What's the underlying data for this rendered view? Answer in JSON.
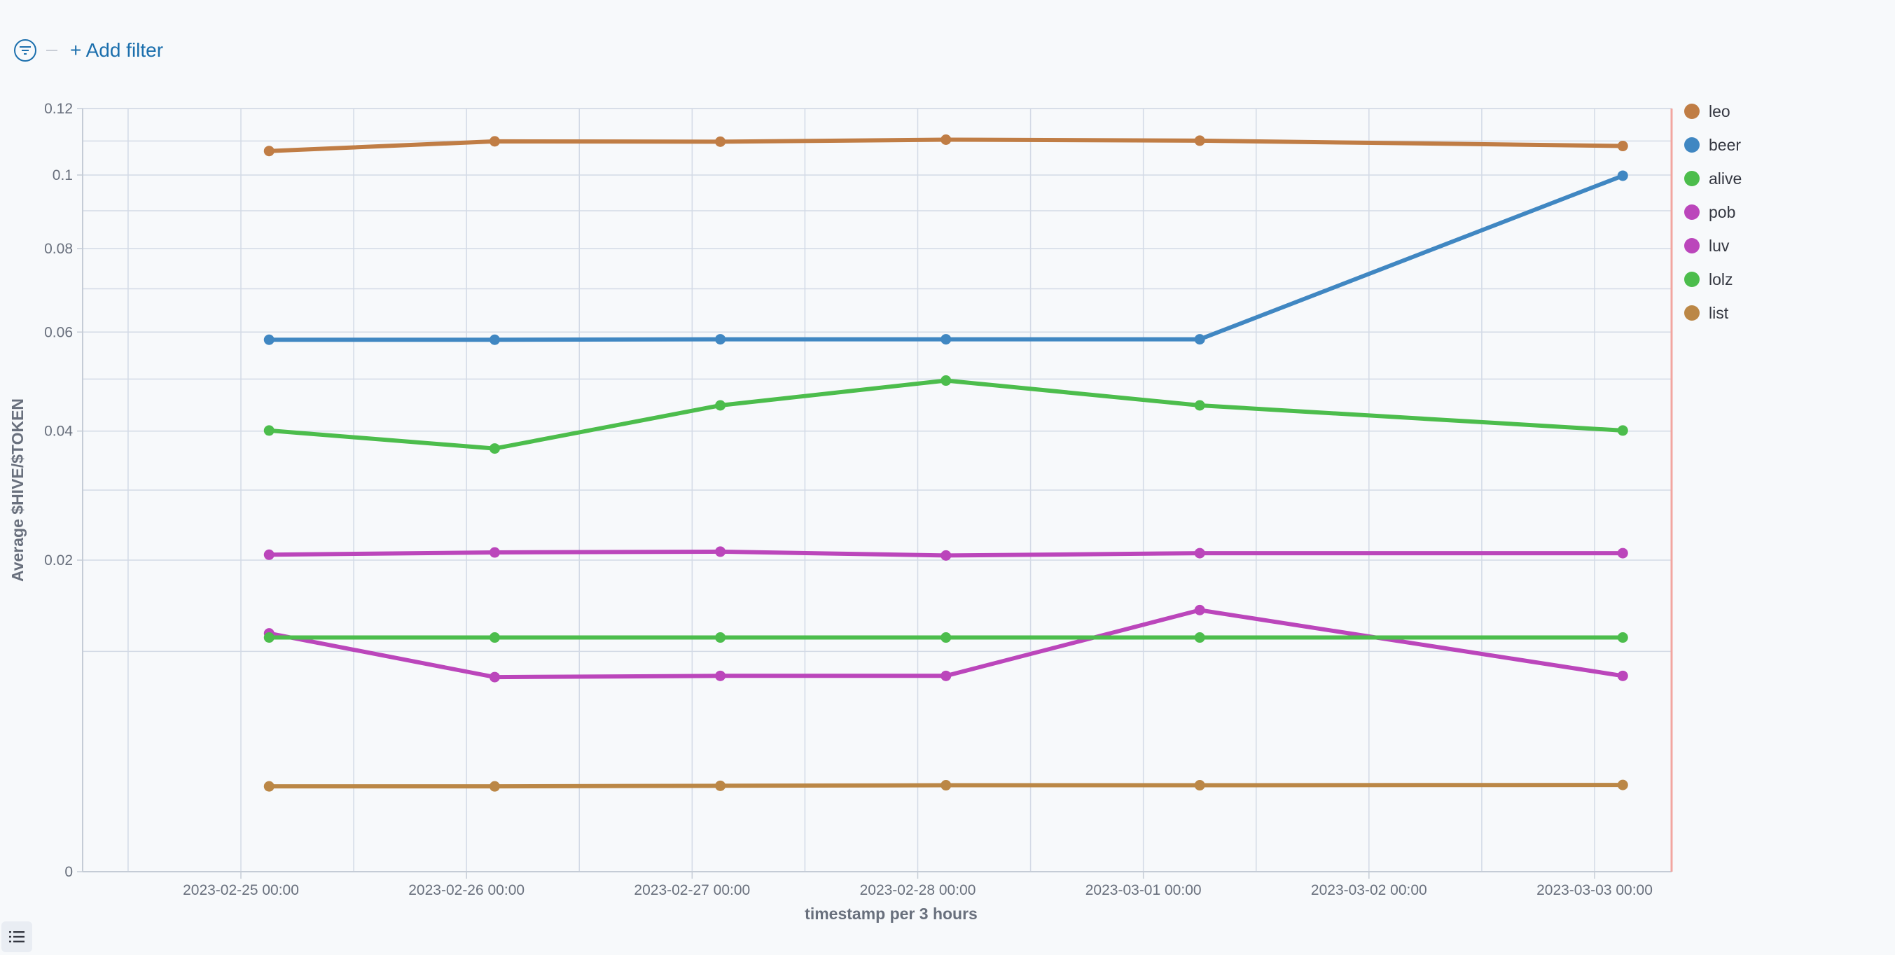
{
  "filterbar": {
    "filter_icon": "filter-icon",
    "add_filter_label": "+ Add filter"
  },
  "legend_toggle_icon": "list-icon",
  "chart_data": {
    "type": "line",
    "xlabel": "timestamp per 3 hours",
    "ylabel": "Average $HIVE/$TOKEN",
    "x_ticks": [
      "2023-02-25 00:00",
      "2023-02-26 00:00",
      "2023-02-27 00:00",
      "2023-02-28 00:00",
      "2023-03-01 00:00",
      "2023-03-02 00:00",
      "2023-03-03 00:00"
    ],
    "y_ticks": [
      0,
      0.02,
      0.04,
      0.06,
      0.08,
      0.1,
      0.12
    ],
    "y_tick_labels": [
      "0",
      "0.02",
      "0.04",
      "0.06",
      "0.08",
      "0.1",
      "0.12"
    ],
    "y_scale": "sqrt",
    "ylim": [
      0,
      0.12
    ],
    "grid": true,
    "legend_position": "right",
    "x": [
      "2023-02-25 03:00",
      "2023-02-26 03:00",
      "2023-02-27 03:00",
      "2023-02-28 03:00",
      "2023-03-01 06:00",
      "2023-03-03 03:00"
    ],
    "series": [
      {
        "name": "leo",
        "color": "#c07d45",
        "values": [
          0.107,
          0.1099,
          0.1098,
          0.1104,
          0.1101,
          0.1085
        ]
      },
      {
        "name": "beer",
        "color": "#4087c2",
        "values": [
          0.0583,
          0.0583,
          0.0584,
          0.0584,
          0.0584,
          0.0998
        ]
      },
      {
        "name": "alive",
        "color": "#4cbd4c",
        "values": [
          0.0401,
          0.0369,
          0.0448,
          0.0497,
          0.0448,
          0.0401
        ]
      },
      {
        "name": "pob",
        "color": "#bb46bb",
        "values": [
          0.0207,
          0.021,
          0.0211,
          0.0206,
          0.0209,
          0.0209
        ]
      },
      {
        "name": "luv",
        "color": "#bb46bb",
        "values": [
          0.0117,
          0.0078,
          0.0079,
          0.0079,
          0.0141,
          0.0079
        ]
      },
      {
        "name": "lolz",
        "color": "#4cbd4c",
        "values": [
          0.0113,
          0.0113,
          0.0113,
          0.0113,
          0.0113,
          0.0113
        ]
      },
      {
        "name": "list",
        "color": "#bb8746",
        "values": [
          0.0015,
          0.0015,
          0.00152,
          0.00154,
          0.00154,
          0.00155
        ]
      }
    ]
  }
}
